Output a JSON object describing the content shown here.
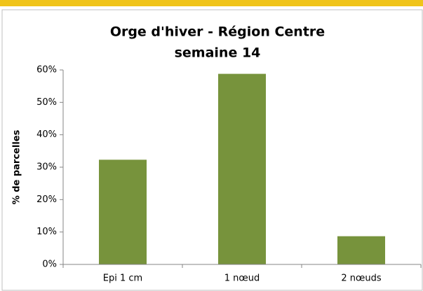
{
  "chart_data": {
    "type": "bar",
    "title": "Orge d'hiver - Région Centre",
    "subtitle": "semaine 14",
    "y_label": "% de parcelles",
    "categories": [
      "Epi 1 cm",
      "1 nœud",
      "2 nœuds"
    ],
    "values": [
      32.3,
      58.8,
      8.7
    ],
    "color": "#77933c",
    "ylim": [
      0,
      60
    ],
    "yticks": [
      {
        "value": 0,
        "label": "0%"
      },
      {
        "value": 10,
        "label": "10%"
      },
      {
        "value": 20,
        "label": "20%"
      },
      {
        "value": 30,
        "label": "30%"
      },
      {
        "value": 40,
        "label": "40%"
      },
      {
        "value": 50,
        "label": "50%"
      },
      {
        "value": 60,
        "label": "60%"
      }
    ],
    "grid": false
  }
}
